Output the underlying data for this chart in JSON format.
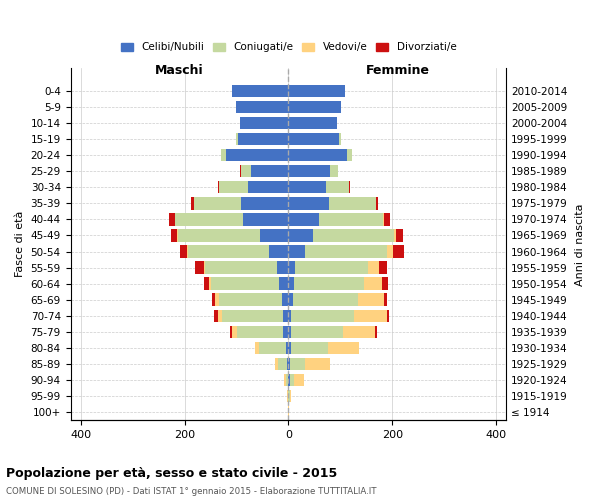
{
  "age_groups": [
    "0-4",
    "5-9",
    "10-14",
    "15-19",
    "20-24",
    "25-29",
    "30-34",
    "35-39",
    "40-44",
    "45-49",
    "50-54",
    "55-59",
    "60-64",
    "65-69",
    "70-74",
    "75-79",
    "80-84",
    "85-89",
    "90-94",
    "95-99",
    "100+"
  ],
  "birth_years": [
    "2010-2014",
    "2005-2009",
    "2000-2004",
    "1995-1999",
    "1990-1994",
    "1985-1989",
    "1980-1984",
    "1975-1979",
    "1970-1974",
    "1965-1969",
    "1960-1964",
    "1955-1959",
    "1950-1954",
    "1945-1949",
    "1940-1944",
    "1935-1939",
    "1930-1934",
    "1925-1929",
    "1920-1924",
    "1915-1919",
    "≤ 1914"
  ],
  "males": {
    "celibi": [
      108,
      102,
      93,
      98,
      120,
      72,
      78,
      92,
      88,
      55,
      38,
      22,
      18,
      12,
      10,
      10,
      5,
      2,
      0,
      0,
      0
    ],
    "coniugati": [
      0,
      0,
      0,
      4,
      10,
      20,
      55,
      90,
      130,
      158,
      155,
      138,
      132,
      122,
      118,
      90,
      52,
      18,
      5,
      1,
      0
    ],
    "vedovi": [
      0,
      0,
      0,
      0,
      0,
      0,
      0,
      0,
      1,
      1,
      2,
      3,
      4,
      8,
      8,
      8,
      8,
      6,
      4,
      1,
      0
    ],
    "divorziati": [
      0,
      0,
      0,
      0,
      0,
      2,
      2,
      5,
      12,
      12,
      15,
      18,
      8,
      5,
      7,
      5,
      0,
      0,
      0,
      0,
      0
    ]
  },
  "females": {
    "nubili": [
      108,
      102,
      93,
      97,
      112,
      80,
      72,
      78,
      58,
      48,
      32,
      12,
      10,
      8,
      5,
      5,
      5,
      2,
      2,
      0,
      0
    ],
    "coniugate": [
      0,
      0,
      0,
      5,
      10,
      16,
      45,
      90,
      125,
      155,
      158,
      142,
      135,
      125,
      122,
      100,
      72,
      30,
      8,
      2,
      0
    ],
    "vedove": [
      0,
      0,
      0,
      0,
      0,
      0,
      0,
      0,
      2,
      5,
      12,
      20,
      36,
      52,
      62,
      62,
      58,
      48,
      20,
      2,
      1
    ],
    "divorziate": [
      0,
      0,
      0,
      0,
      0,
      0,
      2,
      5,
      10,
      12,
      20,
      16,
      10,
      5,
      5,
      3,
      0,
      0,
      0,
      0,
      0
    ]
  },
  "colors": {
    "celibi": "#4472C4",
    "coniugati": "#C5D9A0",
    "vedovi": "#FFD280",
    "divorziati": "#CC1010"
  },
  "xlim": 420,
  "title": "Popolazione per età, sesso e stato civile - 2015",
  "subtitle": "COMUNE DI SOLESINO (PD) - Dati ISTAT 1° gennaio 2015 - Elaborazione TUTTITALIA.IT",
  "ylabel_left": "Fasce di età",
  "ylabel_right": "Anni di nascita",
  "label_maschi": "Maschi",
  "label_femmine": "Femmine",
  "legend_labels": [
    "Celibi/Nubili",
    "Coniugati/e",
    "Vedovi/e",
    "Divorziati/e"
  ]
}
